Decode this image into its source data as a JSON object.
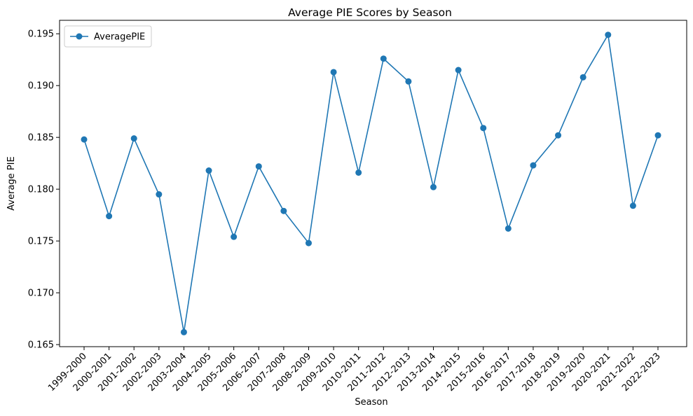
{
  "chart_data": {
    "type": "line",
    "title": "Average PIE Scores by Season",
    "xlabel": "Season",
    "ylabel": "Average PIE",
    "categories": [
      "1999-2000",
      "2000-2001",
      "2001-2002",
      "2002-2003",
      "2003-2004",
      "2004-2005",
      "2005-2006",
      "2006-2007",
      "2007-2008",
      "2008-2009",
      "2009-2010",
      "2010-2011",
      "2011-2012",
      "2012-2013",
      "2013-2014",
      "2014-2015",
      "2015-2016",
      "2016-2017",
      "2017-2018",
      "2018-2019",
      "2019-2020",
      "2020-2021",
      "2021-2022",
      "2022-2023"
    ],
    "series": [
      {
        "name": "AveragePIE",
        "values": [
          0.1848,
          0.1774,
          0.1849,
          0.1795,
          0.1662,
          0.1818,
          0.1754,
          0.1822,
          0.1779,
          0.1748,
          0.1913,
          0.1816,
          0.1926,
          0.1904,
          0.1802,
          0.1915,
          0.1859,
          0.1762,
          0.1823,
          0.1852,
          0.1908,
          0.1949,
          0.1784,
          0.1852
        ]
      }
    ],
    "yticks": [
      "0.165",
      "0.170",
      "0.175",
      "0.180",
      "0.185",
      "0.190",
      "0.195"
    ],
    "ylim": [
      0.1648,
      0.1963
    ],
    "grid": false,
    "legend_position": "upper left",
    "colors": {
      "line": "#1f77b4",
      "axes": "#000000",
      "background": "#ffffff"
    },
    "marker": "circle"
  }
}
